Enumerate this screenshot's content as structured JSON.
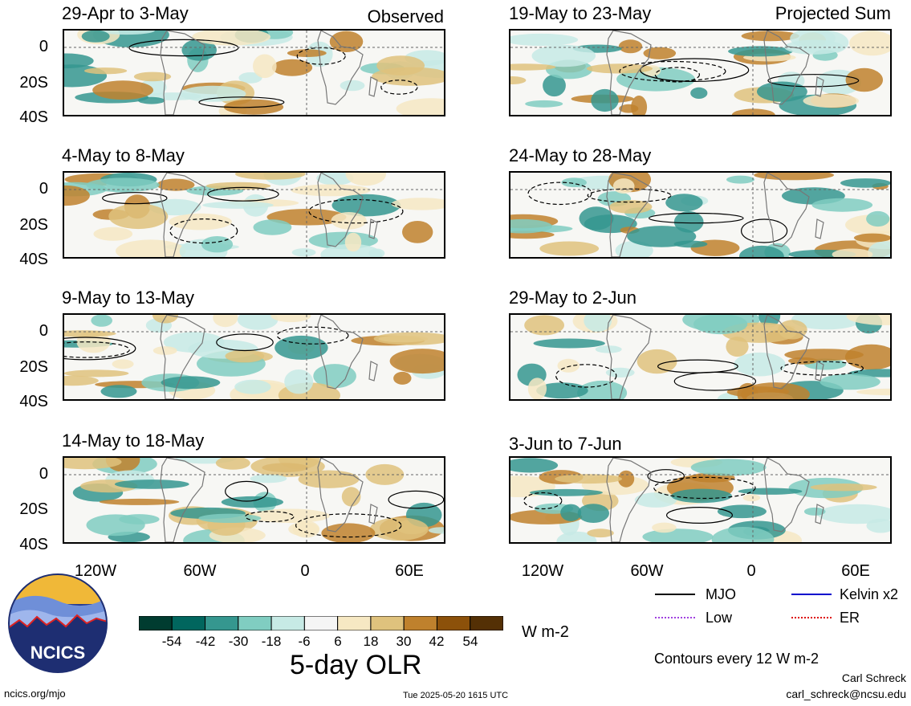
{
  "columns": [
    {
      "header": "Observed"
    },
    {
      "header": "Projected Sum"
    }
  ],
  "panels": [
    {
      "title": "29-Apr to 3-May",
      "col": 0,
      "row": 0
    },
    {
      "title": "4-May to 8-May",
      "col": 0,
      "row": 1
    },
    {
      "title": "9-May to 13-May",
      "col": 0,
      "row": 2
    },
    {
      "title": "14-May to 18-May",
      "col": 0,
      "row": 3
    },
    {
      "title": "19-May to 23-May",
      "col": 1,
      "row": 0
    },
    {
      "title": "24-May to 28-May",
      "col": 1,
      "row": 1
    },
    {
      "title": "29-May to 2-Jun",
      "col": 1,
      "row": 2
    },
    {
      "title": "3-Jun to 7-Jun",
      "col": 1,
      "row": 3
    }
  ],
  "axes": {
    "y_ticks": [
      "0",
      "20S",
      "40S"
    ],
    "x_ticks": [
      "120W",
      "60W",
      "0",
      "60E"
    ]
  },
  "colorbar": {
    "labels": [
      "-54",
      "-42",
      "-30",
      "-18",
      "-6",
      "6",
      "18",
      "30",
      "42",
      "54"
    ],
    "colors": [
      "#003c30",
      "#01665e",
      "#35978f",
      "#80cdc1",
      "#c7eae5",
      "#f5f5f5",
      "#f6e8c3",
      "#dfc27d",
      "#bf812d",
      "#8c510a",
      "#543005"
    ],
    "units": "W m-2",
    "title": "5-day OLR"
  },
  "legend": {
    "items": [
      {
        "label": "MJO",
        "color": "#000000"
      },
      {
        "label": "Kelvin x2",
        "color": "#0000cc"
      },
      {
        "label": "Low",
        "color": "#a040e0"
      },
      {
        "label": "ER",
        "color": "#dd0000"
      }
    ],
    "contour_note": "Contours every 12 W m-2"
  },
  "logo": {
    "text": "NCICS"
  },
  "footer": {
    "url": "ncics.org/mjo",
    "timestamp": "Tue 2025-05-20 1615 UTC",
    "author": "Carl Schreck",
    "email": "carl_schreck@ncsu.edu"
  }
}
